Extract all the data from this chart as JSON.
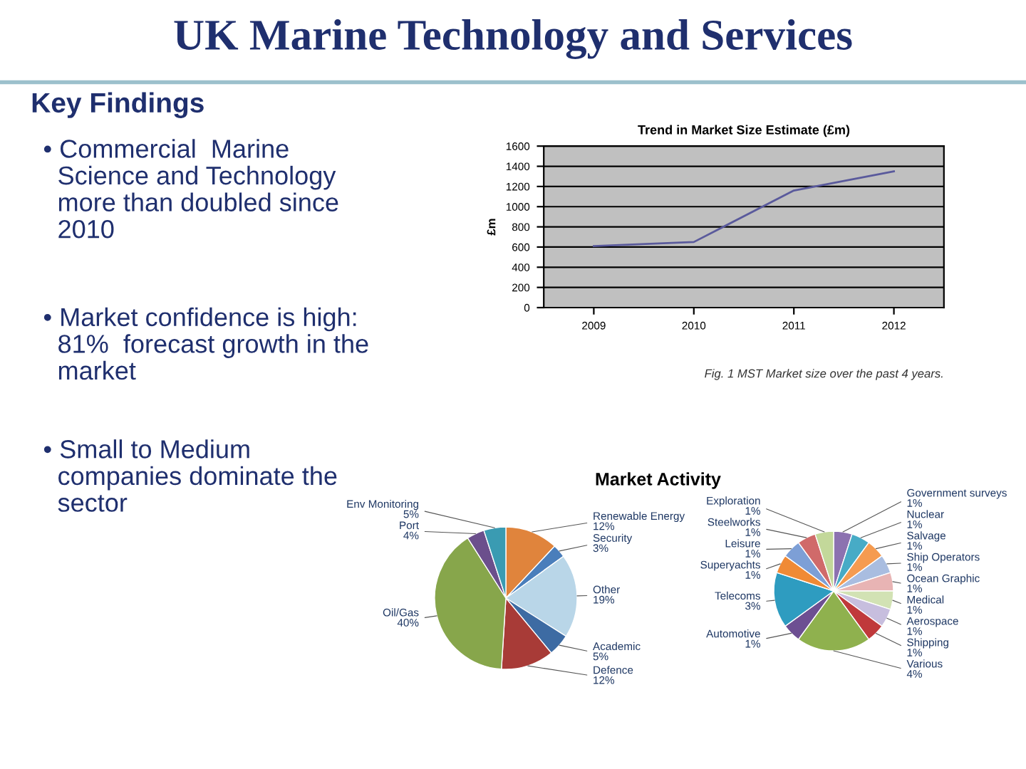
{
  "chart_data": [
    {
      "type": "other",
      "title": "UK Marine Technology and Services",
      "subtitle": "Key Findings",
      "annotations": [
        "• Commercial  Marine Science and Technology more than doubled since 2010",
        "• Market confidence is high: 81%  forecast growth in the market",
        "• Small to Medium companies dominate the sector"
      ]
    },
    {
      "type": "line",
      "title": "Trend in Market Size Estimate (£m)",
      "ylabel": "£m",
      "categories": [
        "2009",
        "2010",
        "2011",
        "2012"
      ],
      "series": [
        {
          "color": "#5a5a9c",
          "values": [
            610,
            650,
            1160,
            1350
          ]
        }
      ],
      "ylim": [
        0,
        1600
      ],
      "yticks": [
        0,
        200,
        400,
        600,
        800,
        1000,
        1200,
        1400,
        1600
      ],
      "grid": "y",
      "marker": "none",
      "line_style": "solid",
      "annotations": [
        "Fig. 1 MST Market size over the past 4 years."
      ]
    },
    {
      "type": "pie",
      "title": "Market Activity",
      "categories": [
        "Renewable Energy",
        "Security",
        "Other",
        "Academic",
        "Defence",
        "Oil/Gas",
        "Port",
        "Env Monitoring"
      ],
      "values": [
        12,
        3,
        19,
        5,
        12,
        40,
        4,
        5
      ],
      "value_labels": [
        "12%",
        "3%",
        "19%",
        "5%",
        "12%",
        "40%",
        "4%",
        "5%"
      ],
      "colors": [
        "#e0843c",
        "#4a7ebb",
        "#b9d6e8",
        "#3d6ba3",
        "#a83b37",
        "#87a64b",
        "#6b4f8c",
        "#3a9bb2"
      ]
    },
    {
      "type": "pie",
      "categories": [
        "Government surveys",
        "Nuclear",
        "Salvage",
        "Ship Operators",
        "Ocean Graphic",
        "Medical",
        "Aerospace",
        "Shipping",
        "Various",
        "Automotive",
        "Telecoms",
        "Superyachts",
        "Leisure",
        "Steelworks",
        "Exploration"
      ],
      "values": [
        1,
        1,
        1,
        1,
        1,
        1,
        1,
        1,
        4,
        1,
        3,
        1,
        1,
        1,
        1
      ],
      "value_labels": [
        "1%",
        "1%",
        "1%",
        "1%",
        "1%",
        "1%",
        "1%",
        "1%",
        "4%",
        "1%",
        "3%",
        "1%",
        "1%",
        "1%",
        "1%"
      ],
      "colors": [
        "#8c72b0",
        "#47abc6",
        "#f59b50",
        "#a9bde0",
        "#e8b4b4",
        "#d2e2b4",
        "#c7bede",
        "#c0393b",
        "#8fb14e",
        "#6d4f92",
        "#2e9cc0",
        "#f08a35",
        "#7d9fd6",
        "#d06a6a",
        "#c3d89a"
      ]
    }
  ]
}
